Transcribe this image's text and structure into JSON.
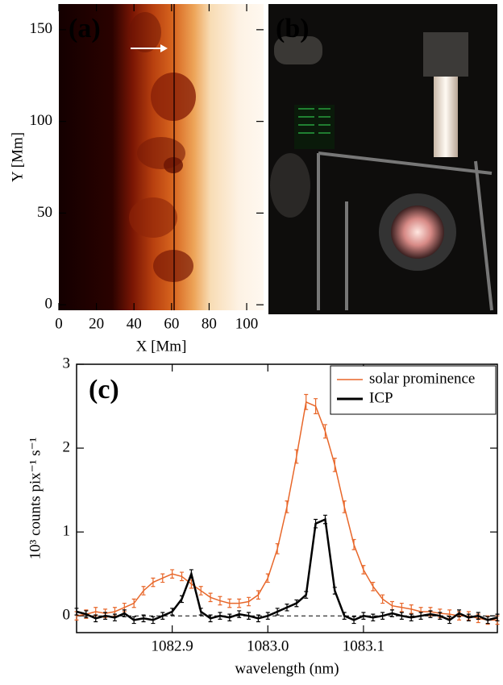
{
  "chart_data": [
    {
      "type": "image",
      "label": "(a)",
      "xlabel": "X [Mm]",
      "ylabel": "Y [Mm]",
      "xlim": [
        0,
        109
      ],
      "ylim": [
        -3,
        164
      ],
      "xticks": [
        0,
        20,
        40,
        60,
        80,
        100
      ],
      "yticks": [
        0,
        50,
        100,
        150
      ]
    },
    {
      "type": "image",
      "label": "(b)"
    },
    {
      "type": "line",
      "label": "(c)",
      "xlabel": "wavelength (nm)",
      "ylabel": "10³ counts pix⁻¹ s⁻¹",
      "xlim": [
        1082.8,
        1083.24
      ],
      "ylim": [
        -0.2,
        3
      ],
      "xticks": [
        1082.9,
        {
          "value": 1083,
          "label": "1083.0"
        },
        1083.1
      ],
      "yticks": [
        0,
        1,
        2,
        3
      ],
      "hline": 0,
      "legend": "upper right",
      "x": [
        1082.8,
        1082.81,
        1082.82,
        1082.83,
        1082.84,
        1082.85,
        1082.86,
        1082.87,
        1082.88,
        1082.89,
        1082.9,
        1082.91,
        1082.92,
        1082.93,
        1082.94,
        1082.95,
        1082.96,
        1082.97,
        1082.98,
        1082.99,
        1083.0,
        1083.01,
        1083.02,
        1083.03,
        1083.04,
        1083.05,
        1083.06,
        1083.07,
        1083.08,
        1083.09,
        1083.1,
        1083.11,
        1083.12,
        1083.13,
        1083.14,
        1083.15,
        1083.16,
        1083.17,
        1083.18,
        1083.19,
        1083.2,
        1083.21,
        1083.22,
        1083.23,
        1083.24
      ],
      "series": [
        {
          "name": "solar prominence",
          "color": "#e8672a",
          "values": [
            0.0,
            0.02,
            0.05,
            0.03,
            0.05,
            0.1,
            0.15,
            0.3,
            0.4,
            0.45,
            0.5,
            0.47,
            0.38,
            0.3,
            0.22,
            0.18,
            0.15,
            0.15,
            0.17,
            0.25,
            0.45,
            0.8,
            1.3,
            1.9,
            2.55,
            2.5,
            2.2,
            1.8,
            1.3,
            0.85,
            0.55,
            0.35,
            0.2,
            0.12,
            0.1,
            0.08,
            0.05,
            0.05,
            0.03,
            0.02,
            0.0,
            0.0,
            -0.03,
            -0.05,
            -0.05
          ],
          "errors": [
            0.05,
            0.05,
            0.05,
            0.05,
            0.05,
            0.05,
            0.05,
            0.05,
            0.05,
            0.05,
            0.05,
            0.05,
            0.05,
            0.05,
            0.05,
            0.05,
            0.05,
            0.05,
            0.05,
            0.05,
            0.05,
            0.06,
            0.07,
            0.08,
            0.09,
            0.09,
            0.08,
            0.08,
            0.07,
            0.06,
            0.05,
            0.05,
            0.05,
            0.05,
            0.05,
            0.05,
            0.05,
            0.05,
            0.05,
            0.05,
            0.05,
            0.05,
            0.05,
            0.05,
            0.05
          ]
        },
        {
          "name": "ICP",
          "color": "#000000",
          "values": [
            0.05,
            0.02,
            -0.03,
            0.0,
            -0.02,
            0.03,
            -0.05,
            -0.03,
            -0.05,
            0.0,
            0.05,
            0.2,
            0.5,
            0.05,
            -0.03,
            0.0,
            -0.02,
            0.02,
            0.0,
            -0.03,
            0.0,
            0.05,
            0.1,
            0.15,
            0.25,
            1.1,
            1.15,
            0.3,
            0.0,
            -0.05,
            0.0,
            -0.02,
            0.0,
            0.03,
            0.0,
            -0.02,
            0.0,
            0.02,
            0.0,
            -0.05,
            0.03,
            -0.02,
            0.0,
            -0.05,
            -0.02
          ],
          "errors": [
            0.04,
            0.04,
            0.04,
            0.04,
            0.04,
            0.04,
            0.04,
            0.04,
            0.04,
            0.04,
            0.04,
            0.04,
            0.05,
            0.04,
            0.04,
            0.04,
            0.04,
            0.04,
            0.04,
            0.04,
            0.04,
            0.04,
            0.04,
            0.04,
            0.04,
            0.05,
            0.05,
            0.04,
            0.04,
            0.04,
            0.04,
            0.04,
            0.04,
            0.04,
            0.04,
            0.04,
            0.04,
            0.04,
            0.04,
            0.04,
            0.04,
            0.04,
            0.04,
            0.04,
            0.04
          ]
        }
      ]
    }
  ]
}
